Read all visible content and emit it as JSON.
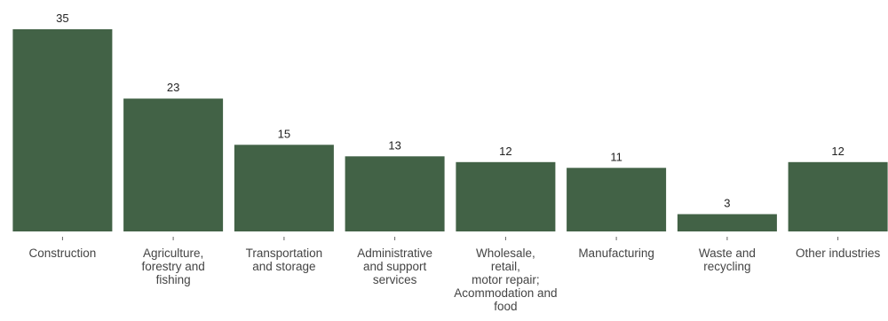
{
  "chart_data": {
    "type": "bar",
    "categories": [
      [
        "Construction"
      ],
      [
        "Agriculture,",
        "forestry and",
        "fishing"
      ],
      [
        "Transportation",
        "and storage"
      ],
      [
        "Administrative",
        "and support",
        "services"
      ],
      [
        "Wholesale,",
        "retail,",
        "motor repair;",
        "Acommodation and",
        "food"
      ],
      [
        "Manufacturing"
      ],
      [
        "Waste and",
        "recycling"
      ],
      [
        "Other industries"
      ]
    ],
    "values": [
      35,
      23,
      15,
      13,
      12,
      11,
      3,
      12
    ],
    "title": "",
    "xlabel": "",
    "ylabel": "",
    "ylim": [
      0,
      35
    ],
    "grid": false,
    "legend": "none",
    "bar_color": "#426246"
  }
}
